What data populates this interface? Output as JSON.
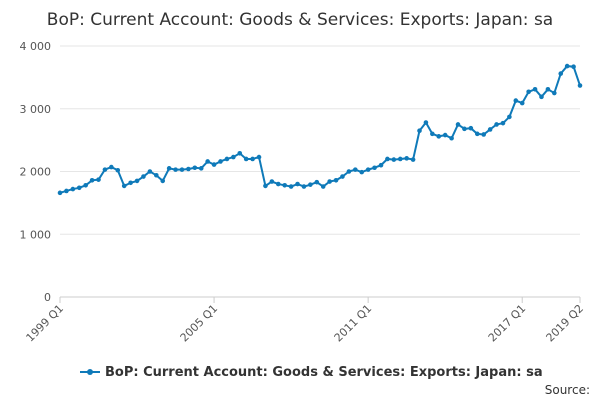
{
  "chart_data": {
    "type": "line",
    "title": "BoP: Current Account: Goods & Services: Exports: Japan: sa",
    "xlabel": "",
    "ylabel": "",
    "ylim": [
      0,
      4000
    ],
    "y_ticks": [
      0,
      1000,
      2000,
      3000,
      4000
    ],
    "y_tick_labels": [
      "0",
      "1 000",
      "2 000",
      "3 000",
      "4 000"
    ],
    "x_tick_labels": [
      "1999 Q1",
      "2005 Q1",
      "2011 Q1",
      "2017 Q1",
      "2019 Q2"
    ],
    "grid": true,
    "legend_position": "bottom",
    "series_color": "#0f7ab9",
    "series": [
      {
        "name": "BoP: Current Account: Goods & Services: Exports: Japan: sa",
        "x": [
          "1999 Q1",
          "1999 Q2",
          "1999 Q3",
          "1999 Q4",
          "2000 Q1",
          "2000 Q2",
          "2000 Q3",
          "2000 Q4",
          "2001 Q1",
          "2001 Q2",
          "2001 Q3",
          "2001 Q4",
          "2002 Q1",
          "2002 Q2",
          "2002 Q3",
          "2002 Q4",
          "2003 Q1",
          "2003 Q2",
          "2003 Q3",
          "2003 Q4",
          "2004 Q1",
          "2004 Q2",
          "2004 Q3",
          "2004 Q4",
          "2005 Q1",
          "2005 Q2",
          "2005 Q3",
          "2005 Q4",
          "2006 Q1",
          "2006 Q2",
          "2006 Q3",
          "2006 Q4",
          "2007 Q1",
          "2007 Q2",
          "2007 Q3",
          "2007 Q4",
          "2008 Q1",
          "2008 Q2",
          "2008 Q3",
          "2008 Q4",
          "2009 Q1",
          "2009 Q2",
          "2009 Q3",
          "2009 Q4",
          "2010 Q1",
          "2010 Q2",
          "2010 Q3",
          "2010 Q4",
          "2011 Q1",
          "2011 Q2",
          "2011 Q3",
          "2011 Q4",
          "2012 Q1",
          "2012 Q2",
          "2012 Q3",
          "2012 Q4",
          "2013 Q1",
          "2013 Q2",
          "2013 Q3",
          "2013 Q4",
          "2014 Q1",
          "2014 Q2",
          "2014 Q3",
          "2014 Q4",
          "2015 Q1",
          "2015 Q2",
          "2015 Q3",
          "2015 Q4",
          "2016 Q1",
          "2016 Q2",
          "2016 Q3",
          "2016 Q4",
          "2017 Q1",
          "2017 Q2",
          "2017 Q3",
          "2017 Q4",
          "2018 Q1",
          "2018 Q2",
          "2018 Q3",
          "2018 Q4",
          "2019 Q1",
          "2019 Q2"
        ],
        "values": [
          1660,
          1690,
          1720,
          1740,
          1780,
          1860,
          1870,
          2030,
          2070,
          2020,
          1770,
          1820,
          1850,
          1920,
          2000,
          1940,
          1850,
          2050,
          2030,
          2030,
          2040,
          2060,
          2050,
          2160,
          2110,
          2160,
          2200,
          2230,
          2290,
          2200,
          2200,
          2230,
          1770,
          1840,
          1800,
          1780,
          1760,
          1800,
          1760,
          1790,
          1830,
          1760,
          1840,
          1860,
          1920,
          2000,
          2030,
          1990,
          2030,
          2060,
          2100,
          2200,
          2190,
          2200,
          2210,
          2190,
          2650,
          2780,
          2600,
          2560,
          2580,
          2530,
          2750,
          2680,
          2690,
          2600,
          2590,
          2670,
          2750,
          2770,
          2870,
          3130,
          3090,
          3270,
          3310,
          3190,
          3310,
          3250,
          3560,
          3680,
          3670,
          3370
        ]
      }
    ]
  },
  "legend": {
    "label": "BoP: Current Account: Goods & Services: Exports: Japan: sa"
  },
  "source": {
    "label": "Source:"
  }
}
